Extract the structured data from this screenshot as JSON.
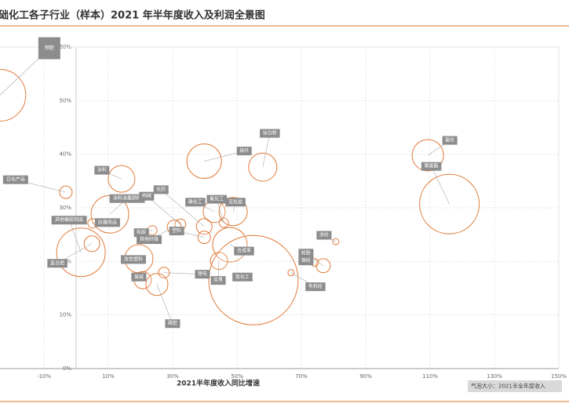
{
  "chart_data": {
    "type": "bubble",
    "title": "础化工各子行业（样本）2021 年半年度收入及利润全景图",
    "x_label": "2021半年度收入同比增速",
    "size_note": "气泡大小：2021半全年度收入",
    "color": "#e07b39",
    "grid": true,
    "xlim": [
      -30,
      150
    ],
    "ylim": [
      0,
      60
    ],
    "xticks": [
      {
        "value": -10,
        "label": "-10%"
      },
      {
        "value": 10,
        "label": "10%"
      },
      {
        "value": 30,
        "label": "30%"
      },
      {
        "value": 50,
        "label": "50%"
      },
      {
        "value": 70,
        "label": "70%"
      },
      {
        "value": 90,
        "label": "90%"
      },
      {
        "value": 110,
        "label": "110%"
      },
      {
        "value": 130,
        "label": "130%"
      },
      {
        "value": 150,
        "label": "150%"
      }
    ],
    "yticks": [
      {
        "value": 0,
        "label": "0%"
      },
      {
        "value": 10,
        "label": "10%"
      },
      {
        "value": 20,
        "label": "20%"
      },
      {
        "value": 30,
        "label": "30%"
      },
      {
        "value": 40,
        "label": "40%"
      },
      {
        "value": 50,
        "label": "50%"
      },
      {
        "value": 60,
        "label": "60%"
      }
    ],
    "points": [
      {
        "label": "钾肥",
        "x": -23.7,
        "y": 51,
        "size": 272
      },
      {
        "label": "钛白粉",
        "x": 58,
        "y": 37.6,
        "size": 81
      },
      {
        "label": "玻纤",
        "x": 39.8,
        "y": 38.7,
        "size": 121
      },
      {
        "label": "氨纶",
        "x": 109.3,
        "y": 39.8,
        "size": 100
      },
      {
        "label": "聚氨酯",
        "x": 116,
        "y": 30.7,
        "size": 361
      },
      {
        "label": "涂料",
        "x": 14.1,
        "y": 35.4,
        "size": 72
      },
      {
        "label": "日化产品",
        "x": -3.2,
        "y": 32.9,
        "size": 16
      },
      {
        "label": "涂料油墨颜料",
        "x": 10.5,
        "y": 28.8,
        "size": 144
      },
      {
        "label": "民爆用品",
        "x": 5.1,
        "y": 27.1,
        "size": 9
      },
      {
        "label": "纯碱",
        "x": 32.4,
        "y": 26.9,
        "size": 12
      },
      {
        "label": "农药",
        "x": 39.8,
        "y": 26.5,
        "size": 25
      },
      {
        "label": "磷化工",
        "x": 42.9,
        "y": 29.3,
        "size": 49
      },
      {
        "label": "氟化工",
        "x": 45.9,
        "y": 27.2,
        "size": 9
      },
      {
        "label": "无机盐",
        "x": 48.8,
        "y": 29.3,
        "size": 81
      },
      {
        "label": "其他橡胶制品",
        "x": 1.5,
        "y": 21.7,
        "size": 240
      },
      {
        "label": "粘胶",
        "x": 23.7,
        "y": 25.8,
        "size": 9
      },
      {
        "label": "其他纤维",
        "x": 30.5,
        "y": 26.4,
        "size": 20
      },
      {
        "label": "塑料",
        "x": 39.8,
        "y": 24.5,
        "size": 16
      },
      {
        "label": "复合肥",
        "x": 4.9,
        "y": 23.3,
        "size": 25
      },
      {
        "label": "改性塑料",
        "x": 19.5,
        "y": 20.5,
        "size": 81
      },
      {
        "label": "氯碱",
        "x": 20.7,
        "y": 16.5,
        "size": 30
      },
      {
        "label": "锂电",
        "x": 27.3,
        "y": 17.9,
        "size": 12
      },
      {
        "label": "合成革",
        "x": 47.8,
        "y": 23.1,
        "size": 121
      },
      {
        "label": "炭黑",
        "x": 44.4,
        "y": 20.1,
        "size": 30
      },
      {
        "label": "氮化工",
        "x": 55.1,
        "y": 16.5,
        "size": 812
      },
      {
        "label": "涤纶",
        "x": 80.7,
        "y": 23.7,
        "size": 4
      },
      {
        "label": "轮胎",
        "x": 76.8,
        "y": 19.2,
        "size": 20
      },
      {
        "label": "锦纶",
        "x": 74.1,
        "y": 19.8,
        "size": 6
      },
      {
        "label": "有机硅",
        "x": 66.8,
        "y": 17.9,
        "size": 4
      },
      {
        "label": "磷肥",
        "x": 25.1,
        "y": 15.7,
        "size": 49
      }
    ]
  }
}
